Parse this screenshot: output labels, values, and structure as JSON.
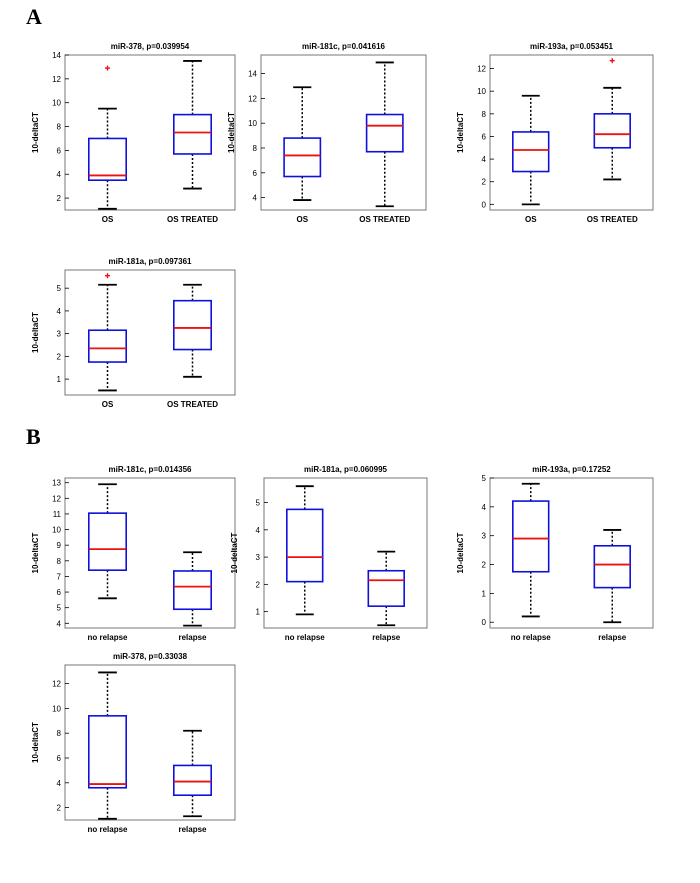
{
  "panels": [
    {
      "letter": "A"
    },
    {
      "letter": "B"
    }
  ],
  "colors": {
    "box": "#1010dd",
    "median": "#ee1111",
    "outlier": "#ee1111",
    "whisker": "#000000",
    "frame": "#777777"
  },
  "chart_data": [
    {
      "type": "box",
      "title": "miR-378, p=0.039954",
      "ylabel": "10-deltaCT",
      "ylim": [
        1,
        14
      ],
      "yticks": [
        2,
        4,
        6,
        8,
        10,
        12,
        14
      ],
      "categories": [
        "OS",
        "OS TREATED"
      ],
      "series": [
        {
          "whisker_low": 1.1,
          "q1": 3.5,
          "median": 3.9,
          "q3": 7.0,
          "whisker_high": 9.5,
          "outliers": [
            12.9
          ]
        },
        {
          "whisker_low": 2.8,
          "q1": 5.7,
          "median": 7.5,
          "q3": 9.0,
          "whisker_high": 13.5,
          "outliers": []
        }
      ]
    },
    {
      "type": "box",
      "title": "miR-181c, p=0.041616",
      "ylabel": "10-deltaCT",
      "ylim": [
        3,
        15.5
      ],
      "yticks": [
        4,
        6,
        8,
        10,
        12,
        14
      ],
      "categories": [
        "OS",
        "OS TREATED"
      ],
      "series": [
        {
          "whisker_low": 3.8,
          "q1": 5.7,
          "median": 7.4,
          "q3": 8.8,
          "whisker_high": 12.9,
          "outliers": []
        },
        {
          "whisker_low": 3.3,
          "q1": 7.7,
          "median": 9.8,
          "q3": 10.7,
          "whisker_high": 14.9,
          "outliers": []
        }
      ]
    },
    {
      "type": "box",
      "title": "miR-193a, p=0.053451",
      "ylabel": "10-deltaCT",
      "ylim": [
        -0.5,
        13.2
      ],
      "yticks": [
        0,
        2,
        4,
        6,
        8,
        10,
        12
      ],
      "categories": [
        "OS",
        "OS TREATED"
      ],
      "series": [
        {
          "whisker_low": 0.0,
          "q1": 2.9,
          "median": 4.8,
          "q3": 6.4,
          "whisker_high": 9.6,
          "outliers": []
        },
        {
          "whisker_low": 2.2,
          "q1": 5.0,
          "median": 6.2,
          "q3": 8.0,
          "whisker_high": 10.3,
          "outliers": [
            12.7
          ]
        }
      ]
    },
    {
      "type": "box",
      "title": "miR-181a, p=0.097361",
      "ylabel": "10-deltaCT",
      "ylim": [
        0.3,
        5.8
      ],
      "yticks": [
        1,
        2,
        3,
        4,
        5
      ],
      "categories": [
        "OS",
        "OS TREATED"
      ],
      "series": [
        {
          "whisker_low": 0.5,
          "q1": 1.75,
          "median": 2.35,
          "q3": 3.15,
          "whisker_high": 5.15,
          "outliers": [
            5.55
          ]
        },
        {
          "whisker_low": 1.1,
          "q1": 2.3,
          "median": 3.25,
          "q3": 4.45,
          "whisker_high": 5.15,
          "outliers": []
        }
      ]
    },
    {
      "type": "box",
      "title": "miR-181c, p=0.014356",
      "ylabel": "10-deltaCT",
      "ylim": [
        3.7,
        13.3
      ],
      "yticks": [
        4,
        5,
        6,
        7,
        8,
        9,
        10,
        11,
        12,
        13
      ],
      "categories": [
        "no relapse",
        "relapse"
      ],
      "series": [
        {
          "whisker_low": 5.6,
          "q1": 7.4,
          "median": 8.75,
          "q3": 11.05,
          "whisker_high": 12.9,
          "outliers": []
        },
        {
          "whisker_low": 3.85,
          "q1": 4.9,
          "median": 6.35,
          "q3": 7.35,
          "whisker_high": 8.55,
          "outliers": []
        }
      ]
    },
    {
      "type": "box",
      "title": "miR-181a, p=0.060995",
      "ylabel": "10-deltaCT",
      "ylim": [
        0.4,
        5.9
      ],
      "yticks": [
        1,
        2,
        3,
        4,
        5
      ],
      "categories": [
        "no relapse",
        "relapse"
      ],
      "series": [
        {
          "whisker_low": 0.9,
          "q1": 2.1,
          "median": 3.0,
          "q3": 4.75,
          "whisker_high": 5.6,
          "outliers": []
        },
        {
          "whisker_low": 0.5,
          "q1": 1.2,
          "median": 2.15,
          "q3": 2.5,
          "whisker_high": 3.2,
          "outliers": []
        }
      ]
    },
    {
      "type": "box",
      "title": "miR-193a, p=0.17252",
      "ylabel": "10-deltaCT",
      "ylim": [
        -0.2,
        5.0
      ],
      "yticks": [
        0,
        1,
        2,
        3,
        4,
        5
      ],
      "categories": [
        "no relapse",
        "relapse"
      ],
      "series": [
        {
          "whisker_low": 0.2,
          "q1": 1.75,
          "median": 2.9,
          "q3": 4.2,
          "whisker_high": 4.8,
          "outliers": []
        },
        {
          "whisker_low": 0.0,
          "q1": 1.2,
          "median": 2.0,
          "q3": 2.65,
          "whisker_high": 3.2,
          "outliers": []
        }
      ]
    },
    {
      "type": "box",
      "title": "miR-378, p=0.33038",
      "ylabel": "10-deltaCT",
      "ylim": [
        1,
        13.5
      ],
      "yticks": [
        2,
        4,
        6,
        8,
        10,
        12
      ],
      "categories": [
        "no relapse",
        "relapse"
      ],
      "series": [
        {
          "whisker_low": 1.1,
          "q1": 3.6,
          "median": 3.9,
          "q3": 9.4,
          "whisker_high": 12.9,
          "outliers": []
        },
        {
          "whisker_low": 1.3,
          "q1": 3.0,
          "median": 4.1,
          "q3": 5.4,
          "whisker_high": 8.2,
          "outliers": []
        }
      ]
    }
  ]
}
